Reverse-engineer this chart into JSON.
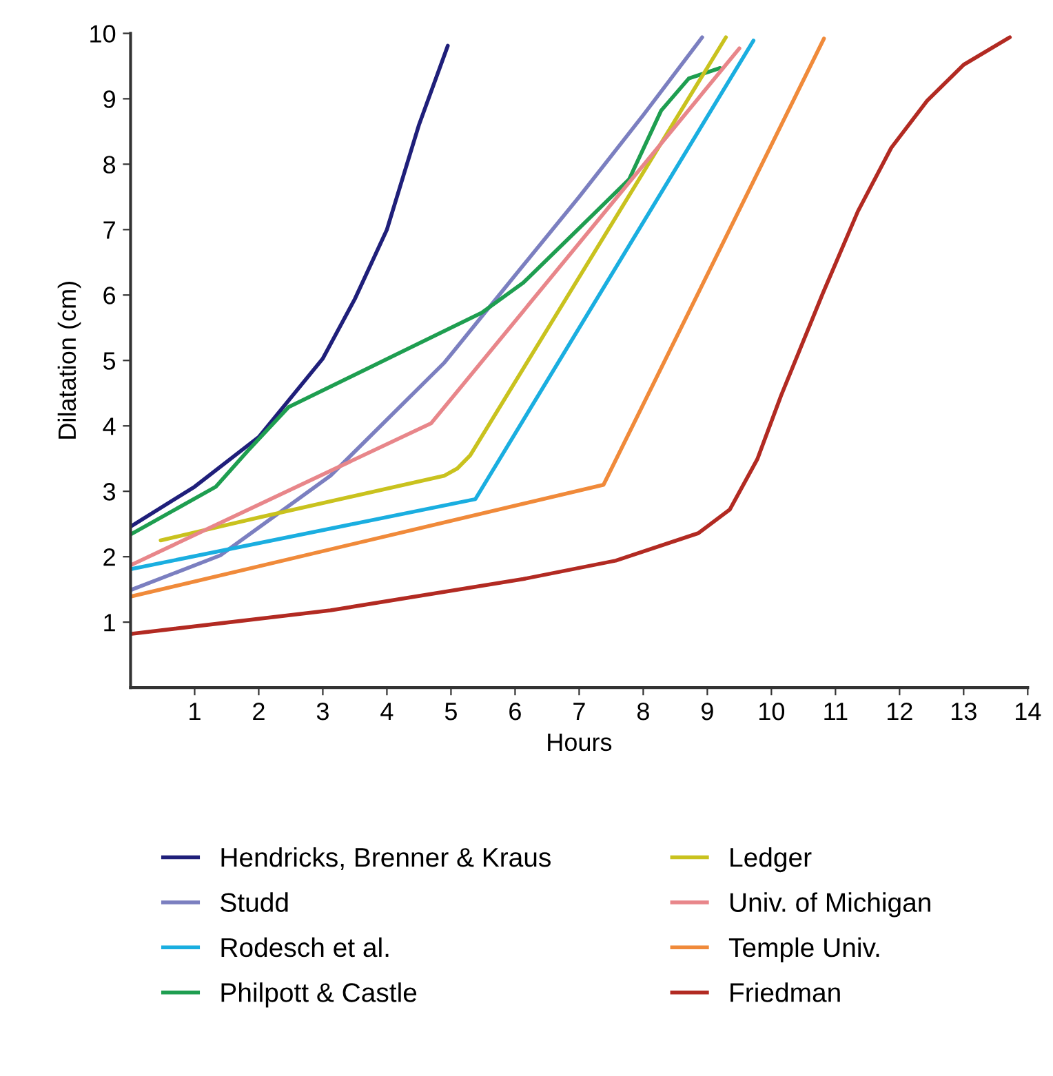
{
  "chart_data": {
    "type": "line",
    "xlabel": "Hours",
    "ylabel": "Dilatation (cm)",
    "xlim": [
      0,
      14
    ],
    "ylim": [
      0,
      10
    ],
    "xticks": [
      1,
      2,
      3,
      4,
      5,
      6,
      7,
      8,
      9,
      10,
      11,
      12,
      13,
      14
    ],
    "yticks": [
      1,
      2,
      3,
      4,
      5,
      6,
      7,
      8,
      9,
      10
    ],
    "grid": false,
    "legend": "bottom",
    "marker": "none",
    "line_style": "solid",
    "series": [
      {
        "name": "Hendricks, Brenner & Kraus",
        "color": "#1f1f7a",
        "x": [
          0,
          1,
          2,
          3,
          3.5,
          4,
          4.5,
          4.95
        ],
        "values": [
          2.46,
          3.07,
          3.83,
          5.03,
          5.94,
          7.0,
          8.6,
          9.81
        ]
      },
      {
        "name": "Studd",
        "color": "#7b7fc0",
        "x": [
          0,
          1.4,
          3.12,
          4.9,
          6,
          7,
          8,
          8.92
        ],
        "values": [
          1.49,
          2.02,
          3.24,
          4.97,
          6.3,
          7.5,
          8.75,
          9.94
        ]
      },
      {
        "name": "Rodesch et al.",
        "color": "#1aaee0",
        "x": [
          0,
          5.38,
          9.72
        ],
        "values": [
          1.81,
          2.88,
          9.89
        ]
      },
      {
        "name": "Philpott & Castle",
        "color": "#1e9e50",
        "x": [
          0,
          1.33,
          1.83,
          2.47,
          5.48,
          6.13,
          7.05,
          7.78,
          8.28,
          8.71,
          9.2
        ],
        "values": [
          2.34,
          3.07,
          3.62,
          4.29,
          5.73,
          6.19,
          7.07,
          7.77,
          8.82,
          9.31,
          9.47
        ]
      },
      {
        "name": "Ledger",
        "color": "#c9c21e",
        "x": [
          0.47,
          2,
          4.9,
          5.1,
          5.3,
          9.29
        ],
        "values": [
          2.25,
          2.6,
          3.24,
          3.35,
          3.55,
          9.94
        ]
      },
      {
        "name": "Univ. of Michigan",
        "color": "#e8868a",
        "x": [
          0,
          4.69,
          9.5
        ],
        "values": [
          1.87,
          4.04,
          9.77
        ]
      },
      {
        "name": "Temple Univ.",
        "color": "#f08a3a",
        "x": [
          0,
          7.38,
          10.82
        ],
        "values": [
          1.39,
          3.1,
          9.92
        ]
      },
      {
        "name": "Friedman",
        "color": "#b22a22",
        "x": [
          0,
          3.12,
          6.13,
          7.57,
          8.86,
          9.35,
          9.78,
          10.15,
          10.8,
          11.35,
          11.87,
          12.43,
          13.0,
          13.72
        ],
        "values": [
          0.82,
          1.18,
          1.66,
          1.94,
          2.36,
          2.72,
          3.49,
          4.46,
          6.02,
          7.28,
          8.25,
          8.97,
          9.52,
          9.94
        ]
      }
    ]
  }
}
